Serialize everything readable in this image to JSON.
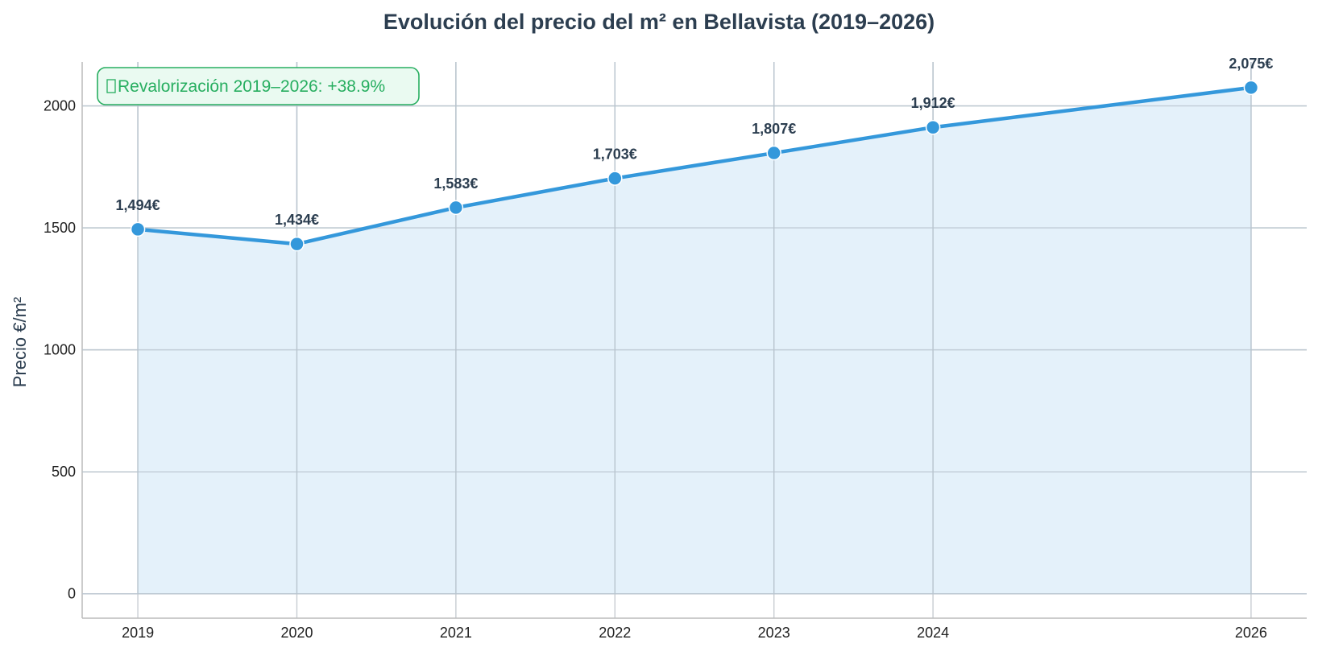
{
  "chart_data": {
    "type": "area",
    "title": "Evolución del precio del m² en Bellavista (2019–2026)",
    "xlabel": "",
    "ylabel": "Precio €/m²",
    "x": [
      2019,
      2020,
      2021,
      2022,
      2023,
      2024,
      2026
    ],
    "x_tick_labels": [
      "2019",
      "2020",
      "2021",
      "2022",
      "2023",
      "2024",
      "2026"
    ],
    "series": [
      {
        "values": [
          1494,
          1434,
          1583,
          1703,
          1807,
          1912,
          2075
        ],
        "data_labels": [
          "1,494€",
          "1,434€",
          "1,583€",
          "1,703€",
          "1,807€",
          "1,912€",
          "2,075€"
        ]
      }
    ],
    "xlim": [
      2018.65,
      2026.35
    ],
    "ylim": [
      -100,
      2180
    ],
    "y_ticks": [
      0,
      500,
      1000,
      1500,
      2000
    ],
    "y_tick_labels": [
      "0",
      "500",
      "1000",
      "1500",
      "2000"
    ],
    "grid": true,
    "annotation": {
      "icon": "chart-up-icon",
      "text": "Revalorización 2019–2026: +38.9%",
      "placement": "top-left"
    },
    "colors": {
      "line": "#3498db",
      "fill": "#e4f1fa",
      "grid": "#c8cdd2",
      "title": "#2c3e50",
      "annotation_text": "#27ae60",
      "annotation_border": "#27ae60",
      "annotation_bg": "#eafaf1"
    }
  }
}
